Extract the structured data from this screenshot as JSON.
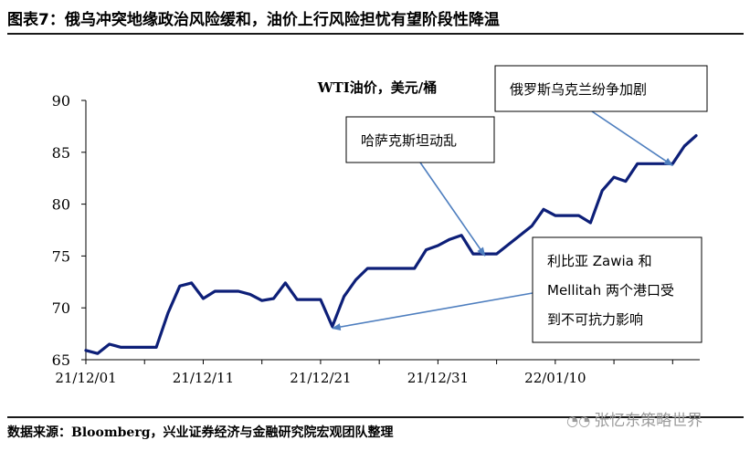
{
  "figure_title": "图表7：俄乌冲突地缘政治风险缓和，油价上行风险担忧有望阶段性降温",
  "source_note": "数据来源：Bloomberg，兴业证券经济与金融研究院宏观团队整理",
  "watermark": "张忆东策略世界",
  "watermark_icon": "wechat-icon",
  "colors": {
    "line": "#0d1f78",
    "arrow": "#4f7fbf",
    "box_border": "#000000"
  },
  "chart_data": {
    "type": "line",
    "title": "WTI油价，美元/桶",
    "xlabel": "",
    "ylabel": "",
    "ylim": [
      65,
      90
    ],
    "yticks": [
      65,
      70,
      75,
      80,
      85,
      90
    ],
    "xtick_labels": [
      "21/12/01",
      "21/12/11",
      "21/12/21",
      "21/12/31",
      "22/01/10"
    ],
    "grid": false,
    "series": [
      {
        "values": [
          65.9,
          65.6,
          66.5,
          66.2,
          66.2,
          66.2,
          66.2,
          69.5,
          72.1,
          72.4,
          70.9,
          71.6,
          71.6,
          71.6,
          71.3,
          70.7,
          70.9,
          72.4,
          70.8,
          70.8,
          70.8,
          68.2,
          71.1,
          72.7,
          73.8,
          73.8,
          73.8,
          73.8,
          73.8,
          75.6,
          76.0,
          76.6,
          77.0,
          75.2,
          75.2,
          75.2,
          76.1,
          77.0,
          77.9,
          79.5,
          78.9,
          78.9,
          78.9,
          78.2,
          81.3,
          82.6,
          82.2,
          83.9,
          83.9,
          83.9,
          83.9,
          85.6,
          86.6
        ]
      }
    ],
    "annotations": [
      {
        "text": "俄罗斯乌克兰纷争加剧",
        "target_index": 50
      },
      {
        "text": "哈萨克斯坦动乱",
        "target_index": 34
      },
      {
        "lines": [
          "利比亚 Zawia 和",
          "Mellitah 两个港口受",
          "到不可抗力影响"
        ],
        "target_index": 21
      }
    ]
  }
}
